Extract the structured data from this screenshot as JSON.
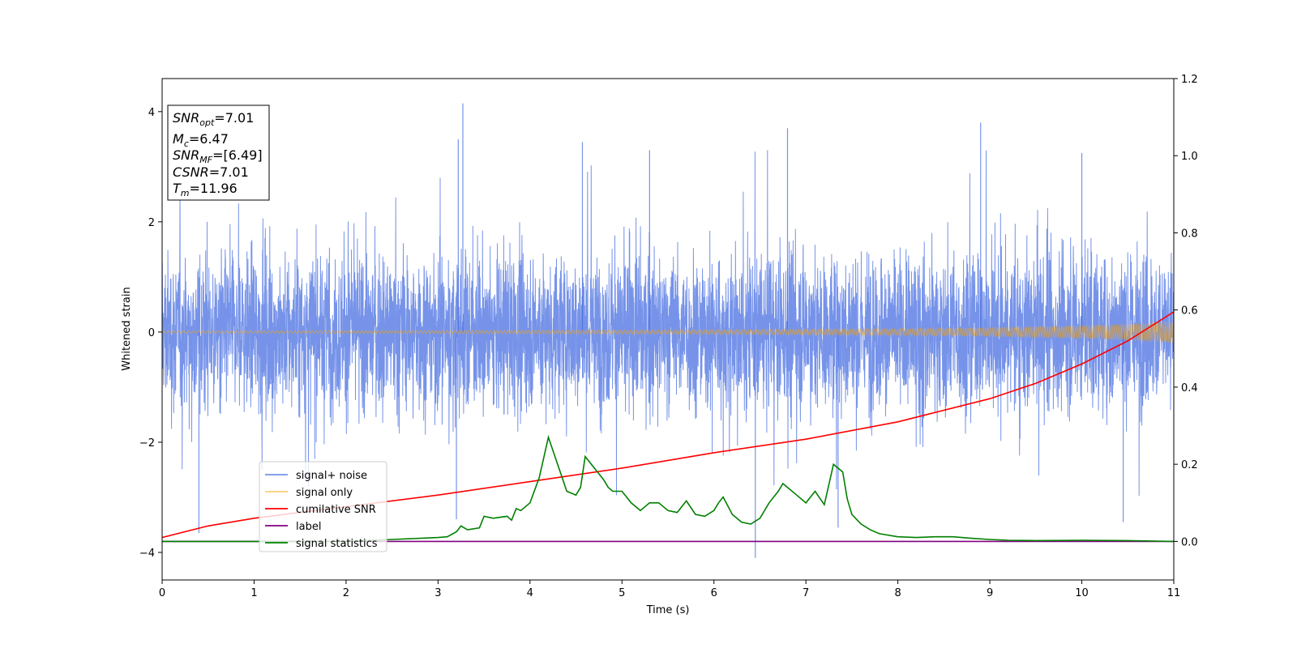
{
  "chart_data": {
    "type": "line",
    "xlabel": "Time (s)",
    "ylabel": "Whitened strain",
    "xlim": [
      0,
      11
    ],
    "ylim": [
      -4.5,
      4.6
    ],
    "y2lim": [
      -0.1,
      1.2
    ],
    "x_ticks": [
      "0",
      "1",
      "2",
      "3",
      "4",
      "5",
      "6",
      "7",
      "8",
      "9",
      "10",
      "11"
    ],
    "y_ticks": [
      "4",
      "2",
      "0",
      "−2",
      "−4"
    ],
    "y2_ticks": [
      "1.2",
      "1.0",
      "0.8",
      "0.6",
      "0.4",
      "0.2",
      "0.0"
    ],
    "legend_placement": "lower-left",
    "grid": false,
    "info_box": {
      "lines": [
        {
          "main": "SNR",
          "sub": "opt",
          "rest": "=7.01"
        },
        {
          "main": "M",
          "sub": "c",
          "rest": "=6.47"
        },
        {
          "main": "SNR",
          "sub": "MF",
          "rest": "=[6.49]"
        },
        {
          "main": "CSNR",
          "sub": "",
          "rest": "=7.01"
        },
        {
          "main": "T",
          "sub": "m",
          "rest": "=11.96"
        }
      ]
    },
    "series": [
      {
        "name": "signal+ noise",
        "color": "#4169e1",
        "axis": "left",
        "style": "noise",
        "typical_amplitude": 1.3,
        "spike_peaks": [
          {
            "x": 3.27,
            "y": 4.15
          },
          {
            "x": 3.22,
            "y": 3.5
          },
          {
            "x": 4.57,
            "y": 3.45
          },
          {
            "x": 6.8,
            "y": 3.7
          },
          {
            "x": 8.9,
            "y": 3.8
          },
          {
            "x": 10.0,
            "y": 3.25
          },
          {
            "x": 6.45,
            "y": -4.1
          },
          {
            "x": 10.45,
            "y": -3.45
          },
          {
            "x": 0.4,
            "y": -3.65
          },
          {
            "x": 7.35,
            "y": -3.55
          },
          {
            "x": 3.2,
            "y": -3.4
          },
          {
            "x": 5.3,
            "y": 3.3
          }
        ]
      },
      {
        "name": "signal only",
        "color": "#ffa500",
        "axis": "left",
        "style": "chirp",
        "x": [
          0,
          2,
          4,
          6,
          8,
          9,
          10,
          10.5,
          11
        ],
        "envelope": [
          0.02,
          0.025,
          0.03,
          0.04,
          0.06,
          0.08,
          0.12,
          0.15,
          0.2
        ]
      },
      {
        "name": "cumilative SNR",
        "color": "#ff0000",
        "axis": "right",
        "x": [
          0,
          0.5,
          1,
          2,
          3,
          4,
          5,
          6,
          7,
          8,
          9,
          9.5,
          10,
          10.5,
          11
        ],
        "y": [
          0.01,
          0.04,
          0.06,
          0.09,
          0.12,
          0.155,
          0.19,
          0.23,
          0.265,
          0.31,
          0.37,
          0.41,
          0.46,
          0.52,
          0.595
        ]
      },
      {
        "name": "label",
        "color": "#800080",
        "axis": "right",
        "x": [
          0,
          11
        ],
        "y": [
          0.0,
          0.0
        ]
      },
      {
        "name": "signal statistics",
        "color": "#008000",
        "axis": "right",
        "x": [
          0,
          1,
          2,
          2.5,
          2.8,
          3.0,
          3.1,
          3.2,
          3.25,
          3.32,
          3.45,
          3.5,
          3.6,
          3.75,
          3.8,
          3.85,
          3.9,
          4.0,
          4.1,
          4.2,
          4.3,
          4.4,
          4.5,
          4.55,
          4.6,
          4.7,
          4.8,
          4.85,
          4.9,
          5.0,
          5.1,
          5.2,
          5.3,
          5.4,
          5.5,
          5.6,
          5.7,
          5.8,
          5.9,
          6.0,
          6.05,
          6.1,
          6.2,
          6.3,
          6.4,
          6.5,
          6.6,
          6.7,
          6.75,
          6.8,
          6.9,
          7.0,
          7.1,
          7.2,
          7.3,
          7.4,
          7.45,
          7.5,
          7.6,
          7.7,
          7.8,
          8.0,
          8.2,
          8.4,
          8.6,
          8.8,
          9.0,
          9.2,
          9.5,
          10.0,
          10.5,
          11
        ],
        "y": [
          0.0,
          0.0,
          0.0,
          0.005,
          0.008,
          0.01,
          0.012,
          0.025,
          0.04,
          0.03,
          0.035,
          0.065,
          0.06,
          0.065,
          0.055,
          0.085,
          0.08,
          0.1,
          0.165,
          0.27,
          0.2,
          0.13,
          0.12,
          0.14,
          0.22,
          0.19,
          0.16,
          0.14,
          0.13,
          0.13,
          0.1,
          0.08,
          0.1,
          0.1,
          0.08,
          0.075,
          0.105,
          0.07,
          0.065,
          0.08,
          0.1,
          0.115,
          0.07,
          0.05,
          0.045,
          0.06,
          0.1,
          0.13,
          0.15,
          0.14,
          0.12,
          0.1,
          0.13,
          0.095,
          0.2,
          0.18,
          0.11,
          0.07,
          0.045,
          0.03,
          0.02,
          0.012,
          0.01,
          0.012,
          0.012,
          0.008,
          0.005,
          0.003,
          0.002,
          0.003,
          0.002,
          0.0
        ]
      }
    ]
  }
}
